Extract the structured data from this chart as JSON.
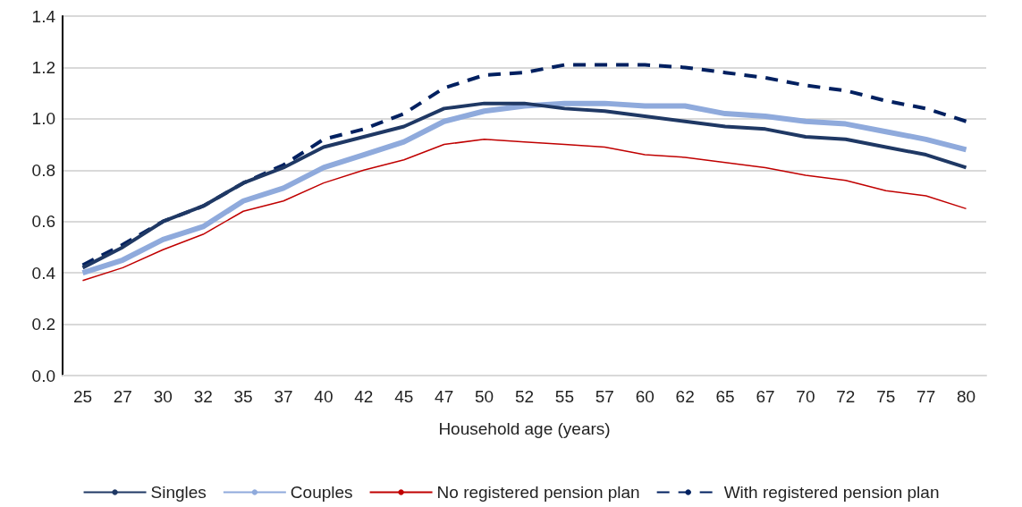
{
  "chart_data": {
    "type": "line",
    "xlabel": "Household age (years)",
    "categories": [
      "25",
      "27",
      "30",
      "32",
      "35",
      "37",
      "40",
      "42",
      "45",
      "47",
      "50",
      "52",
      "55",
      "57",
      "60",
      "62",
      "65",
      "67",
      "70",
      "72",
      "75",
      "77",
      "80"
    ],
    "series": [
      {
        "name": "Singles",
        "color": "#1f3864",
        "line_style": "solid",
        "values": [
          0.42,
          0.5,
          0.6,
          0.66,
          0.75,
          0.81,
          0.89,
          0.93,
          0.97,
          1.04,
          1.06,
          1.06,
          1.04,
          1.03,
          1.01,
          0.99,
          0.97,
          0.96,
          0.93,
          0.92,
          0.89,
          0.86,
          0.81
        ]
      },
      {
        "name": "Couples",
        "color": "#8faadc",
        "line_style": "solid",
        "values": [
          0.4,
          0.45,
          0.53,
          0.58,
          0.68,
          0.73,
          0.81,
          0.86,
          0.91,
          0.99,
          1.03,
          1.05,
          1.06,
          1.06,
          1.05,
          1.05,
          1.02,
          1.01,
          0.99,
          0.98,
          0.95,
          0.92,
          0.88
        ]
      },
      {
        "name": "No registered pension plan",
        "color": "#c00000",
        "line_style": "solid",
        "values": [
          0.37,
          0.42,
          0.49,
          0.55,
          0.64,
          0.68,
          0.75,
          0.8,
          0.84,
          0.9,
          0.92,
          0.91,
          0.9,
          0.89,
          0.86,
          0.85,
          0.83,
          0.81,
          0.78,
          0.76,
          0.72,
          0.7,
          0.65
        ]
      },
      {
        "name": "With registered pension plan",
        "color": "#002060",
        "line_style": "dashed",
        "values": [
          0.43,
          0.51,
          0.6,
          0.66,
          0.75,
          0.82,
          0.92,
          0.96,
          1.02,
          1.12,
          1.17,
          1.18,
          1.21,
          1.21,
          1.21,
          1.2,
          1.18,
          1.16,
          1.13,
          1.11,
          1.07,
          1.04,
          0.99
        ]
      }
    ],
    "ylim": [
      0,
      1.4
    ],
    "yticks": [
      {
        "value": 0,
        "label": "0.0"
      },
      0.2,
      0.4,
      0.6,
      0.8,
      {
        "value": 1,
        "label": "1.0"
      },
      1.2,
      1.4
    ],
    "grid": "y",
    "legend": "bottom",
    "marker": "none"
  }
}
